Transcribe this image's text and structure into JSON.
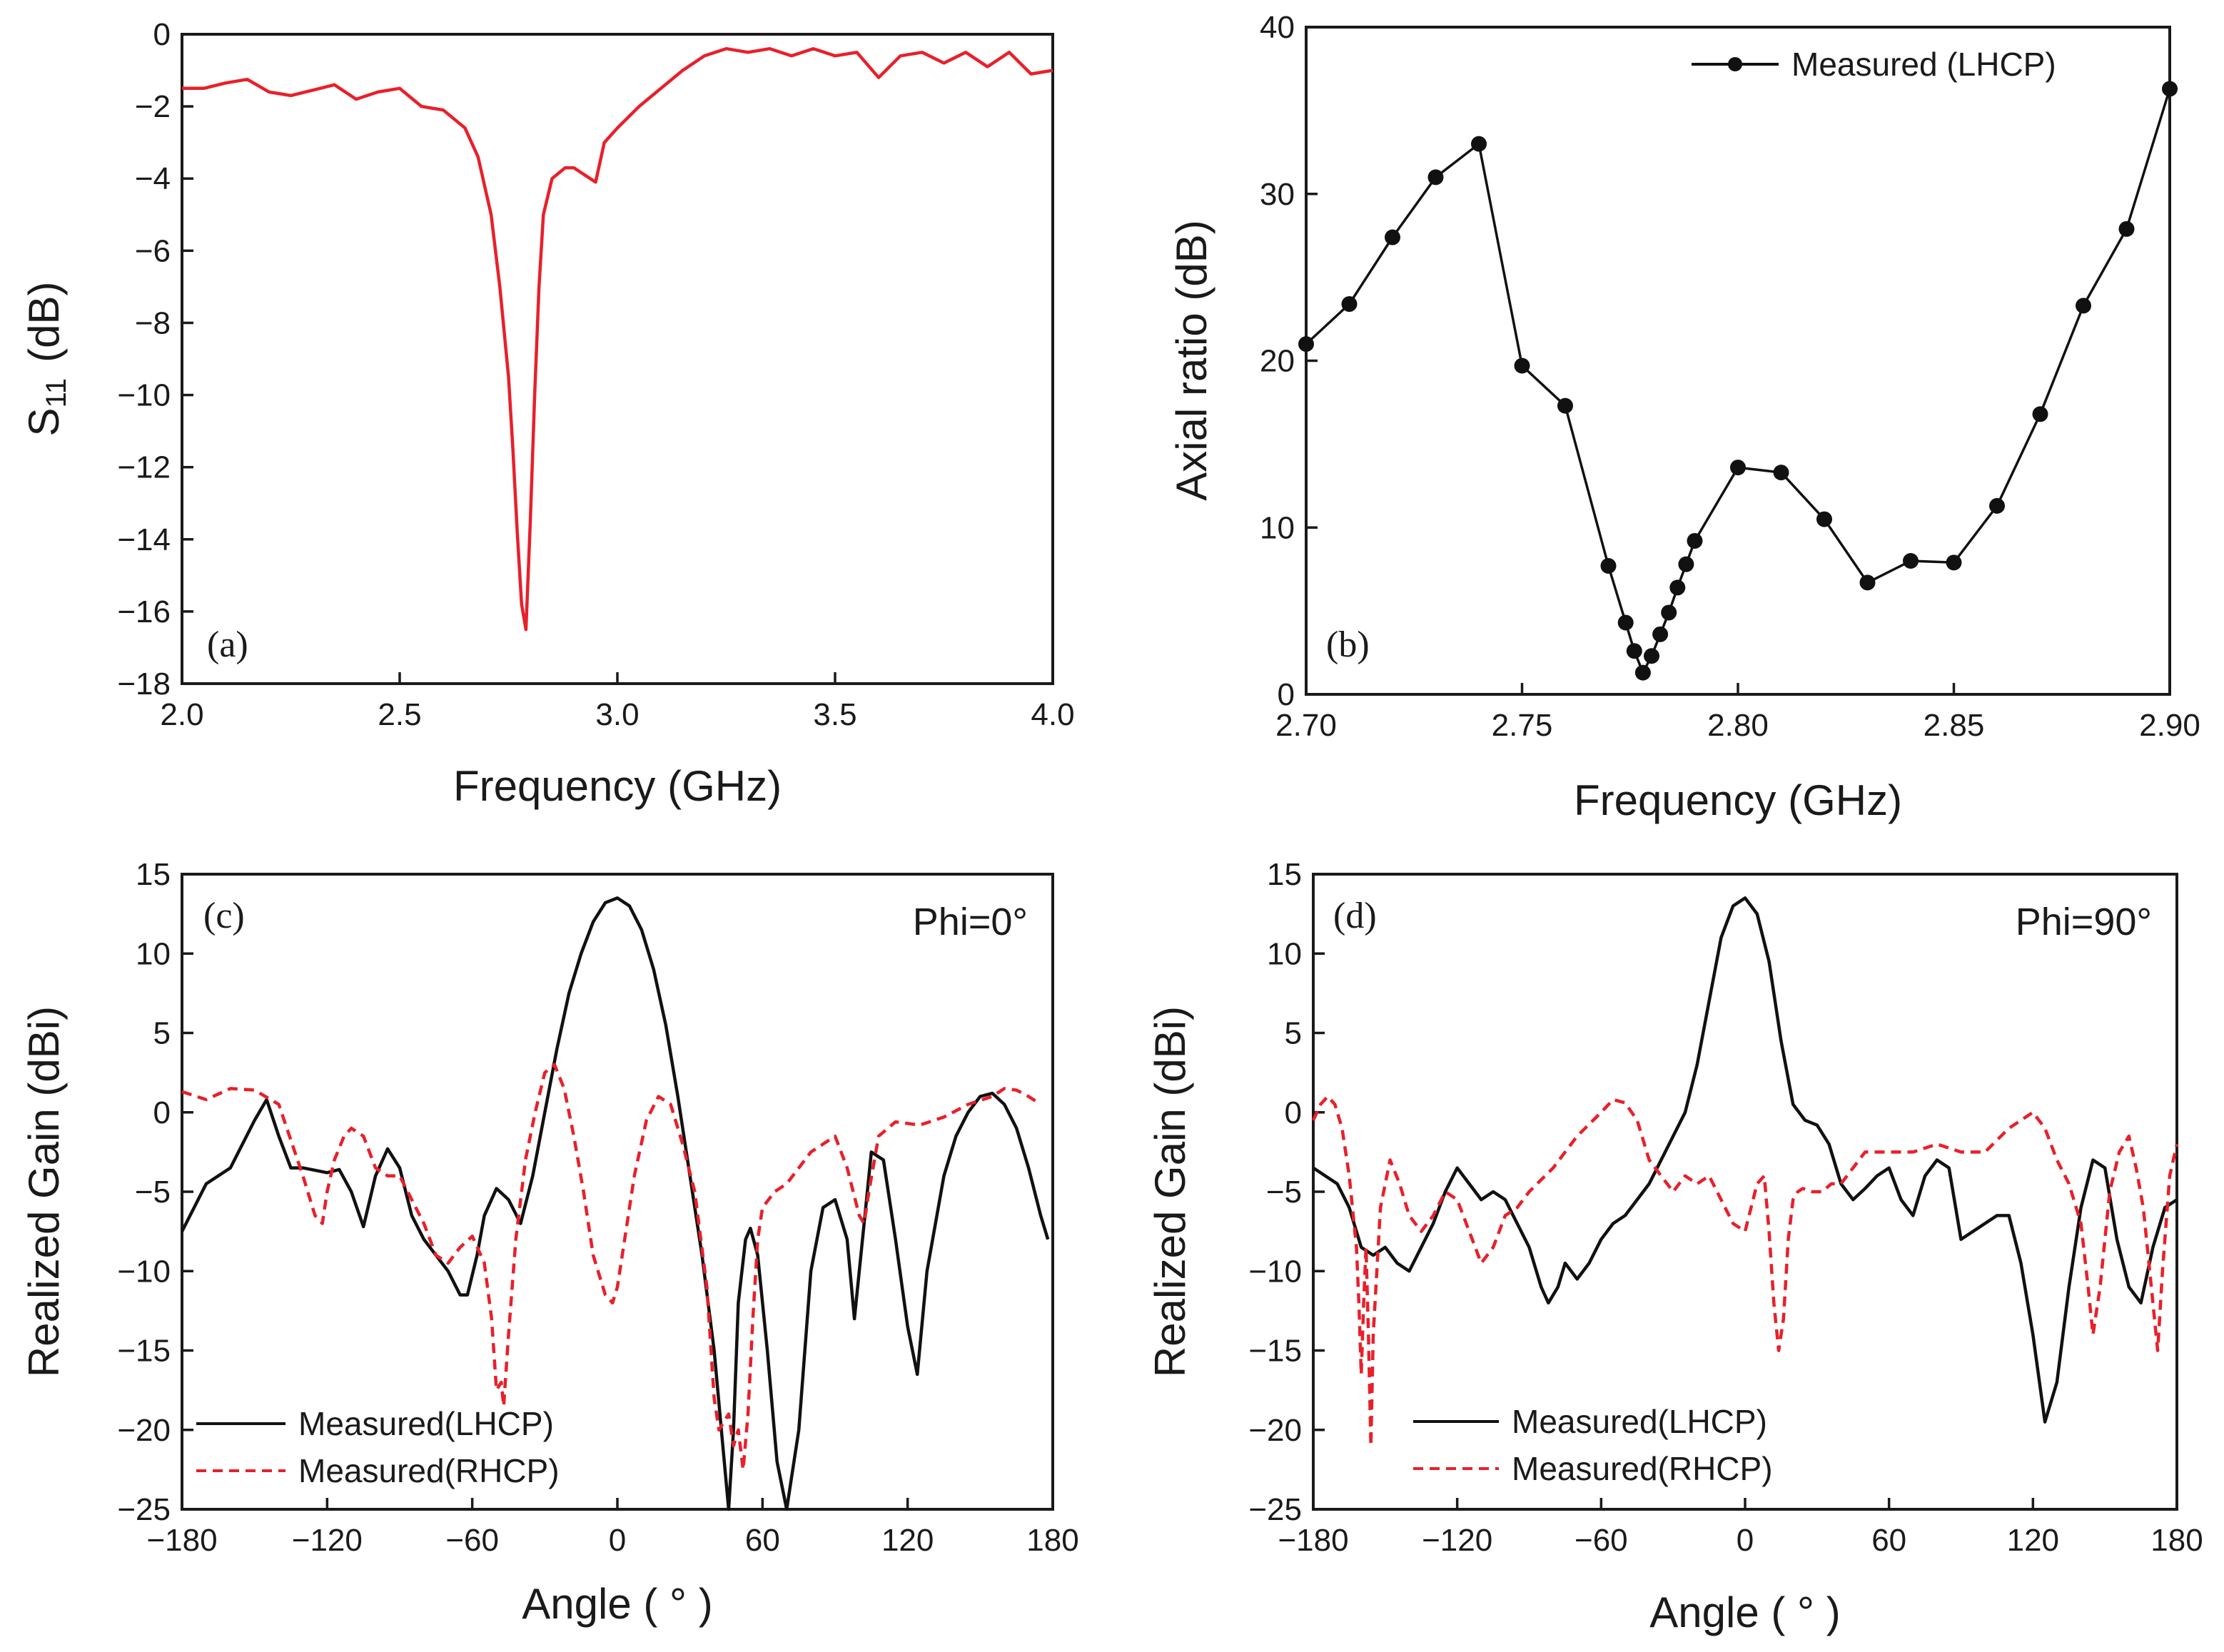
{
  "colors": {
    "measured_lhcp": "#111111",
    "measured_rhcp": "#e8202a",
    "s11": "#e8202a",
    "axis": "#1a1a1a"
  },
  "chart_data": [
    {
      "id": "a",
      "type": "line",
      "panel_label": "(a)",
      "title": "",
      "xlabel": "Frequency (GHz)",
      "ylabel_main": "S",
      "ylabel_sub": "11",
      "ylabel_tail": "(dB)",
      "xlim": [
        2.0,
        4.0
      ],
      "ylim": [
        -18,
        0
      ],
      "xticks": [
        2.0,
        2.5,
        3.0,
        3.5,
        4.0
      ],
      "xtick_labels": [
        "2.0",
        "2.5",
        "3.0",
        "3.5",
        "4.0"
      ],
      "yticks": [
        0,
        -2,
        -4,
        -6,
        -8,
        -10,
        -12,
        -14,
        -16,
        -18
      ],
      "ytick_labels": [
        "0",
        "−2",
        "−4",
        "−6",
        "−8",
        "−10",
        "−12",
        "−14",
        "−16",
        "−18"
      ],
      "series": [
        {
          "name": "S11",
          "style": "solid",
          "color": "#e8202a",
          "x": [
            2.0,
            2.05,
            2.1,
            2.15,
            2.2,
            2.25,
            2.3,
            2.35,
            2.4,
            2.45,
            2.5,
            2.55,
            2.6,
            2.65,
            2.68,
            2.71,
            2.73,
            2.75,
            2.76,
            2.77,
            2.78,
            2.79,
            2.8,
            2.81,
            2.82,
            2.83,
            2.85,
            2.88,
            2.9,
            2.95,
            2.97,
            3.0,
            3.05,
            3.1,
            3.15,
            3.2,
            3.25,
            3.3,
            3.35,
            3.4,
            3.45,
            3.5,
            3.55,
            3.6,
            3.65,
            3.7,
            3.75,
            3.8,
            3.85,
            3.9,
            3.95,
            4.0
          ],
          "y": [
            -1.5,
            -1.5,
            -1.35,
            -1.25,
            -1.6,
            -1.7,
            -1.55,
            -1.4,
            -1.8,
            -1.6,
            -1.5,
            -2.0,
            -2.1,
            -2.6,
            -3.4,
            -5.0,
            -7.0,
            -9.5,
            -11.5,
            -13.8,
            -15.8,
            -16.5,
            -13.5,
            -10.0,
            -7.0,
            -5.0,
            -4.0,
            -3.7,
            -3.7,
            -4.1,
            -3.0,
            -2.6,
            -2.0,
            -1.5,
            -1.0,
            -0.6,
            -0.4,
            -0.5,
            -0.4,
            -0.6,
            -0.4,
            -0.6,
            -0.5,
            -1.2,
            -0.6,
            -0.5,
            -0.8,
            -0.5,
            -0.9,
            -0.5,
            -1.1,
            -1.0
          ]
        }
      ]
    },
    {
      "id": "b",
      "type": "line",
      "panel_label": "(b)",
      "title": "",
      "xlabel": "Frequency (GHz)",
      "ylabel": "Axial ratio (dB)",
      "xlim": [
        2.7,
        2.9
      ],
      "ylim": [
        0,
        40
      ],
      "xticks": [
        2.7,
        2.75,
        2.8,
        2.85,
        2.9
      ],
      "xtick_labels": [
        "2.70",
        "2.75",
        "2.80",
        "2.85",
        "2.90"
      ],
      "yticks": [
        0,
        10,
        20,
        30,
        40
      ],
      "ytick_labels": [
        "0",
        "10",
        "20",
        "30",
        "40"
      ],
      "legend": [
        "Measured (LHCP)"
      ],
      "legend_position": "top-right",
      "series": [
        {
          "name": "Measured (LHCP)",
          "style": "solid-markers",
          "color": "#111111",
          "x": [
            2.7,
            2.71,
            2.72,
            2.73,
            2.74,
            2.75,
            2.76,
            2.77,
            2.774,
            2.776,
            2.778,
            2.78,
            2.782,
            2.784,
            2.786,
            2.788,
            2.79,
            2.8,
            2.81,
            2.82,
            2.83,
            2.84,
            2.85,
            2.86,
            2.87,
            2.88,
            2.89,
            2.9
          ],
          "y": [
            21.0,
            23.4,
            27.4,
            31.0,
            33.0,
            19.7,
            17.3,
            7.7,
            4.3,
            2.6,
            1.3,
            2.3,
            3.6,
            4.9,
            6.4,
            7.8,
            9.2,
            13.6,
            13.3,
            10.5,
            6.7,
            8.0,
            7.9,
            11.3,
            16.8,
            23.3,
            27.9,
            36.3
          ]
        }
      ]
    },
    {
      "id": "c",
      "type": "line",
      "panel_label": "(c)",
      "annotation": "Phi=0°",
      "title": "",
      "xlabel": "Angle ( ° )",
      "ylabel": "Realized Gain (dBi)",
      "xlim": [
        -180,
        180
      ],
      "ylim": [
        -25,
        15
      ],
      "xticks": [
        -180,
        -120,
        -60,
        0,
        60,
        120,
        180
      ],
      "xtick_labels": [
        "−180",
        "−120",
        "−60",
        "0",
        "60",
        "120",
        "180"
      ],
      "yticks": [
        15,
        10,
        5,
        0,
        -5,
        -10,
        -15,
        -20,
        -25
      ],
      "ytick_labels": [
        "15",
        "10",
        "5",
        "0",
        "−5",
        "−10",
        "−15",
        "−20",
        "−25"
      ],
      "legend": [
        "Measured(LHCP)",
        "Measured(RHCP)"
      ],
      "legend_position": "bottom-left",
      "series": [
        {
          "name": "Measured(LHCP)",
          "style": "solid",
          "color": "#111111",
          "x": [
            -180,
            -170,
            -160,
            -150,
            -145,
            -140,
            -135,
            -130,
            -120,
            -115,
            -110,
            -105,
            -100,
            -95,
            -90,
            -85,
            -80,
            -75,
            -70,
            -65,
            -62,
            -58,
            -55,
            -50,
            -45,
            -40,
            -35,
            -30,
            -25,
            -20,
            -15,
            -10,
            -5,
            0,
            5,
            10,
            15,
            20,
            25,
            30,
            35,
            40,
            43,
            46,
            48,
            50,
            53,
            55,
            58,
            62,
            66,
            70,
            75,
            80,
            85,
            90,
            95,
            98,
            102,
            105,
            110,
            115,
            120,
            124,
            128,
            135,
            140,
            145,
            150,
            155,
            160,
            165,
            170,
            175,
            178
          ],
          "y": [
            -7.5,
            -4.5,
            -3.5,
            -0.5,
            0.8,
            -1.5,
            -3.5,
            -3.5,
            -3.8,
            -3.6,
            -5.0,
            -7.2,
            -4.0,
            -2.3,
            -3.5,
            -6.5,
            -8.0,
            -9.0,
            -10.0,
            -11.5,
            -11.5,
            -9.0,
            -6.5,
            -4.8,
            -5.5,
            -7.0,
            -4.0,
            0.0,
            4.0,
            7.5,
            10.0,
            12.0,
            13.2,
            13.5,
            13.0,
            11.5,
            9.0,
            5.5,
            1.0,
            -4.0,
            -9.0,
            -15.0,
            -20.0,
            -25.0,
            -20.0,
            -12.0,
            -8.0,
            -7.3,
            -9.0,
            -15.0,
            -22.0,
            -25.0,
            -20.0,
            -10.0,
            -6.0,
            -5.5,
            -8.0,
            -13.0,
            -7.0,
            -2.5,
            -3.0,
            -8.0,
            -13.5,
            -16.5,
            -10.0,
            -4.0,
            -1.5,
            0.0,
            1.0,
            1.2,
            0.5,
            -1.0,
            -3.5,
            -6.5,
            -8.0
          ]
        },
        {
          "name": "Measured(RHCP)",
          "style": "dashed",
          "color": "#e8202a",
          "x": [
            -180,
            -170,
            -160,
            -150,
            -140,
            -130,
            -125,
            -122,
            -120,
            -117,
            -113,
            -110,
            -105,
            -100,
            -95,
            -90,
            -85,
            -80,
            -75,
            -70,
            -65,
            -60,
            -55,
            -52,
            -50,
            -48,
            -47,
            -45,
            -42,
            -38,
            -34,
            -30,
            -26,
            -22,
            -18,
            -14,
            -10,
            -5,
            -2,
            0,
            3,
            7,
            12,
            17,
            22,
            27,
            32,
            37,
            40,
            42,
            44,
            46,
            48,
            50,
            52,
            54,
            56,
            58,
            60,
            65,
            70,
            75,
            80,
            85,
            90,
            95,
            100,
            102,
            104,
            108,
            115,
            125,
            135,
            145,
            155,
            160,
            165,
            170,
            175
          ],
          "y": [
            1.3,
            0.8,
            1.5,
            1.4,
            0.5,
            -4.0,
            -6.5,
            -7.0,
            -5.0,
            -3.0,
            -1.5,
            -1.0,
            -1.5,
            -3.5,
            -4.0,
            -4.0,
            -5.5,
            -7.0,
            -9.0,
            -9.5,
            -8.5,
            -7.8,
            -9.5,
            -13.0,
            -17.5,
            -17.0,
            -18.5,
            -14.0,
            -8.0,
            -3.0,
            0.0,
            2.5,
            3.0,
            1.5,
            -1.5,
            -5.0,
            -9.0,
            -11.5,
            -12.0,
            -11.0,
            -8.0,
            -4.0,
            -0.5,
            1.0,
            0.5,
            -2.0,
            -5.0,
            -11.0,
            -18.0,
            -20.0,
            -19.5,
            -19.0,
            -21.0,
            -20.0,
            -22.5,
            -19.0,
            -13.0,
            -8.0,
            -6.0,
            -5.0,
            -4.5,
            -3.5,
            -2.5,
            -2.0,
            -1.5,
            -3.5,
            -6.5,
            -7.0,
            -5.0,
            -1.5,
            -0.6,
            -0.8,
            -0.3,
            0.5,
            1.0,
            1.5,
            1.4,
            1.0,
            0.5
          ]
        }
      ]
    },
    {
      "id": "d",
      "type": "line",
      "panel_label": "(d)",
      "annotation": "Phi=90°",
      "title": "",
      "xlabel": "Angle ( ° )",
      "ylabel": "Realized Gain (dBi)",
      "xlim": [
        -180,
        180
      ],
      "ylim": [
        -25,
        15
      ],
      "xticks": [
        -180,
        -120,
        -60,
        0,
        60,
        120,
        180
      ],
      "xtick_labels": [
        "−180",
        "−120",
        "−60",
        "0",
        "60",
        "120",
        "180"
      ],
      "yticks": [
        15,
        10,
        5,
        0,
        -5,
        -10,
        -15,
        -20,
        -25
      ],
      "ytick_labels": [
        "15",
        "10",
        "5",
        "0",
        "−5",
        "−10",
        "−15",
        "−20",
        "−25"
      ],
      "legend": [
        "Measured(LHCP)",
        "Measured(RHCP)"
      ],
      "legend_position": "bottom-left",
      "series": [
        {
          "name": "Measured(LHCP)",
          "style": "solid",
          "color": "#111111",
          "x": [
            -180,
            -170,
            -165,
            -160,
            -155,
            -150,
            -145,
            -140,
            -130,
            -125,
            -120,
            -115,
            -110,
            -105,
            -100,
            -95,
            -90,
            -85,
            -82,
            -78,
            -75,
            -70,
            -65,
            -60,
            -55,
            -50,
            -45,
            -40,
            -35,
            -30,
            -25,
            -20,
            -15,
            -10,
            -5,
            0,
            5,
            10,
            15,
            20,
            25,
            30,
            35,
            40,
            45,
            50,
            55,
            60,
            65,
            70,
            75,
            80,
            85,
            90,
            95,
            100,
            105,
            110,
            115,
            120,
            125,
            130,
            135,
            140,
            145,
            150,
            155,
            160,
            165,
            170,
            175,
            180
          ],
          "y": [
            -3.5,
            -4.5,
            -6.0,
            -8.5,
            -9.0,
            -8.5,
            -9.5,
            -10.0,
            -7.0,
            -5.0,
            -3.5,
            -4.5,
            -5.5,
            -5.0,
            -5.5,
            -7.0,
            -8.5,
            -11.0,
            -12.0,
            -11.0,
            -9.5,
            -10.5,
            -9.5,
            -8.0,
            -7.0,
            -6.5,
            -5.5,
            -4.5,
            -3.0,
            -1.5,
            0.0,
            3.0,
            7.0,
            11.0,
            13.0,
            13.5,
            12.5,
            9.5,
            4.5,
            0.5,
            -0.5,
            -0.8,
            -2.0,
            -4.5,
            -5.5,
            -4.8,
            -4.0,
            -3.5,
            -5.5,
            -6.5,
            -4.0,
            -3.0,
            -3.5,
            -8.0,
            -7.5,
            -7.0,
            -6.5,
            -6.5,
            -9.5,
            -14.0,
            -19.5,
            -17.0,
            -11.0,
            -6.0,
            -3.0,
            -3.5,
            -8.0,
            -11.0,
            -12.0,
            -8.5,
            -6.0,
            -5.5
          ]
        },
        {
          "name": "Measured(RHCP)",
          "style": "dashed",
          "color": "#e8202a",
          "x": [
            -180,
            -177,
            -174,
            -171,
            -168,
            -165,
            -162,
            -161,
            -160,
            -159,
            -158,
            -157,
            -156,
            -155,
            -152,
            -148,
            -144,
            -140,
            -135,
            -130,
            -125,
            -120,
            -115,
            -110,
            -105,
            -100,
            -95,
            -90,
            -80,
            -70,
            -60,
            -55,
            -50,
            -45,
            -40,
            -35,
            -30,
            -25,
            -20,
            -15,
            -10,
            -5,
            0,
            5,
            8,
            10,
            12,
            14,
            16,
            18,
            20,
            22,
            24,
            28,
            32,
            36,
            40,
            50,
            60,
            70,
            80,
            90,
            100,
            110,
            120,
            125,
            130,
            135,
            140,
            143,
            145,
            148,
            152,
            156,
            160,
            163,
            166,
            168,
            170,
            172,
            174,
            177,
            180
          ],
          "y": [
            -0.5,
            0.5,
            1.0,
            0.5,
            -1.0,
            -4.0,
            -8.5,
            -12.0,
            -16.5,
            -12.0,
            -8.5,
            -14.0,
            -21.0,
            -14.0,
            -6.0,
            -3.0,
            -4.5,
            -6.5,
            -7.5,
            -6.5,
            -5.0,
            -5.5,
            -7.5,
            -9.5,
            -8.5,
            -6.5,
            -6.0,
            -5.0,
            -3.5,
            -1.5,
            0.0,
            0.8,
            0.6,
            -0.5,
            -3.0,
            -4.0,
            -5.0,
            -4.0,
            -4.5,
            -4.0,
            -5.5,
            -7.0,
            -7.5,
            -4.5,
            -4.0,
            -7.5,
            -12.0,
            -15.0,
            -13.0,
            -8.0,
            -5.5,
            -5.0,
            -4.8,
            -5.0,
            -5.0,
            -4.5,
            -4.5,
            -2.5,
            -2.5,
            -2.5,
            -2.0,
            -2.5,
            -2.5,
            -1.0,
            0.0,
            -1.0,
            -3.0,
            -4.5,
            -7.0,
            -11.0,
            -14.0,
            -11.0,
            -5.0,
            -2.5,
            -1.5,
            -3.5,
            -6.0,
            -9.0,
            -12.0,
            -15.0,
            -10.0,
            -4.0,
            -2.0
          ]
        }
      ]
    }
  ]
}
